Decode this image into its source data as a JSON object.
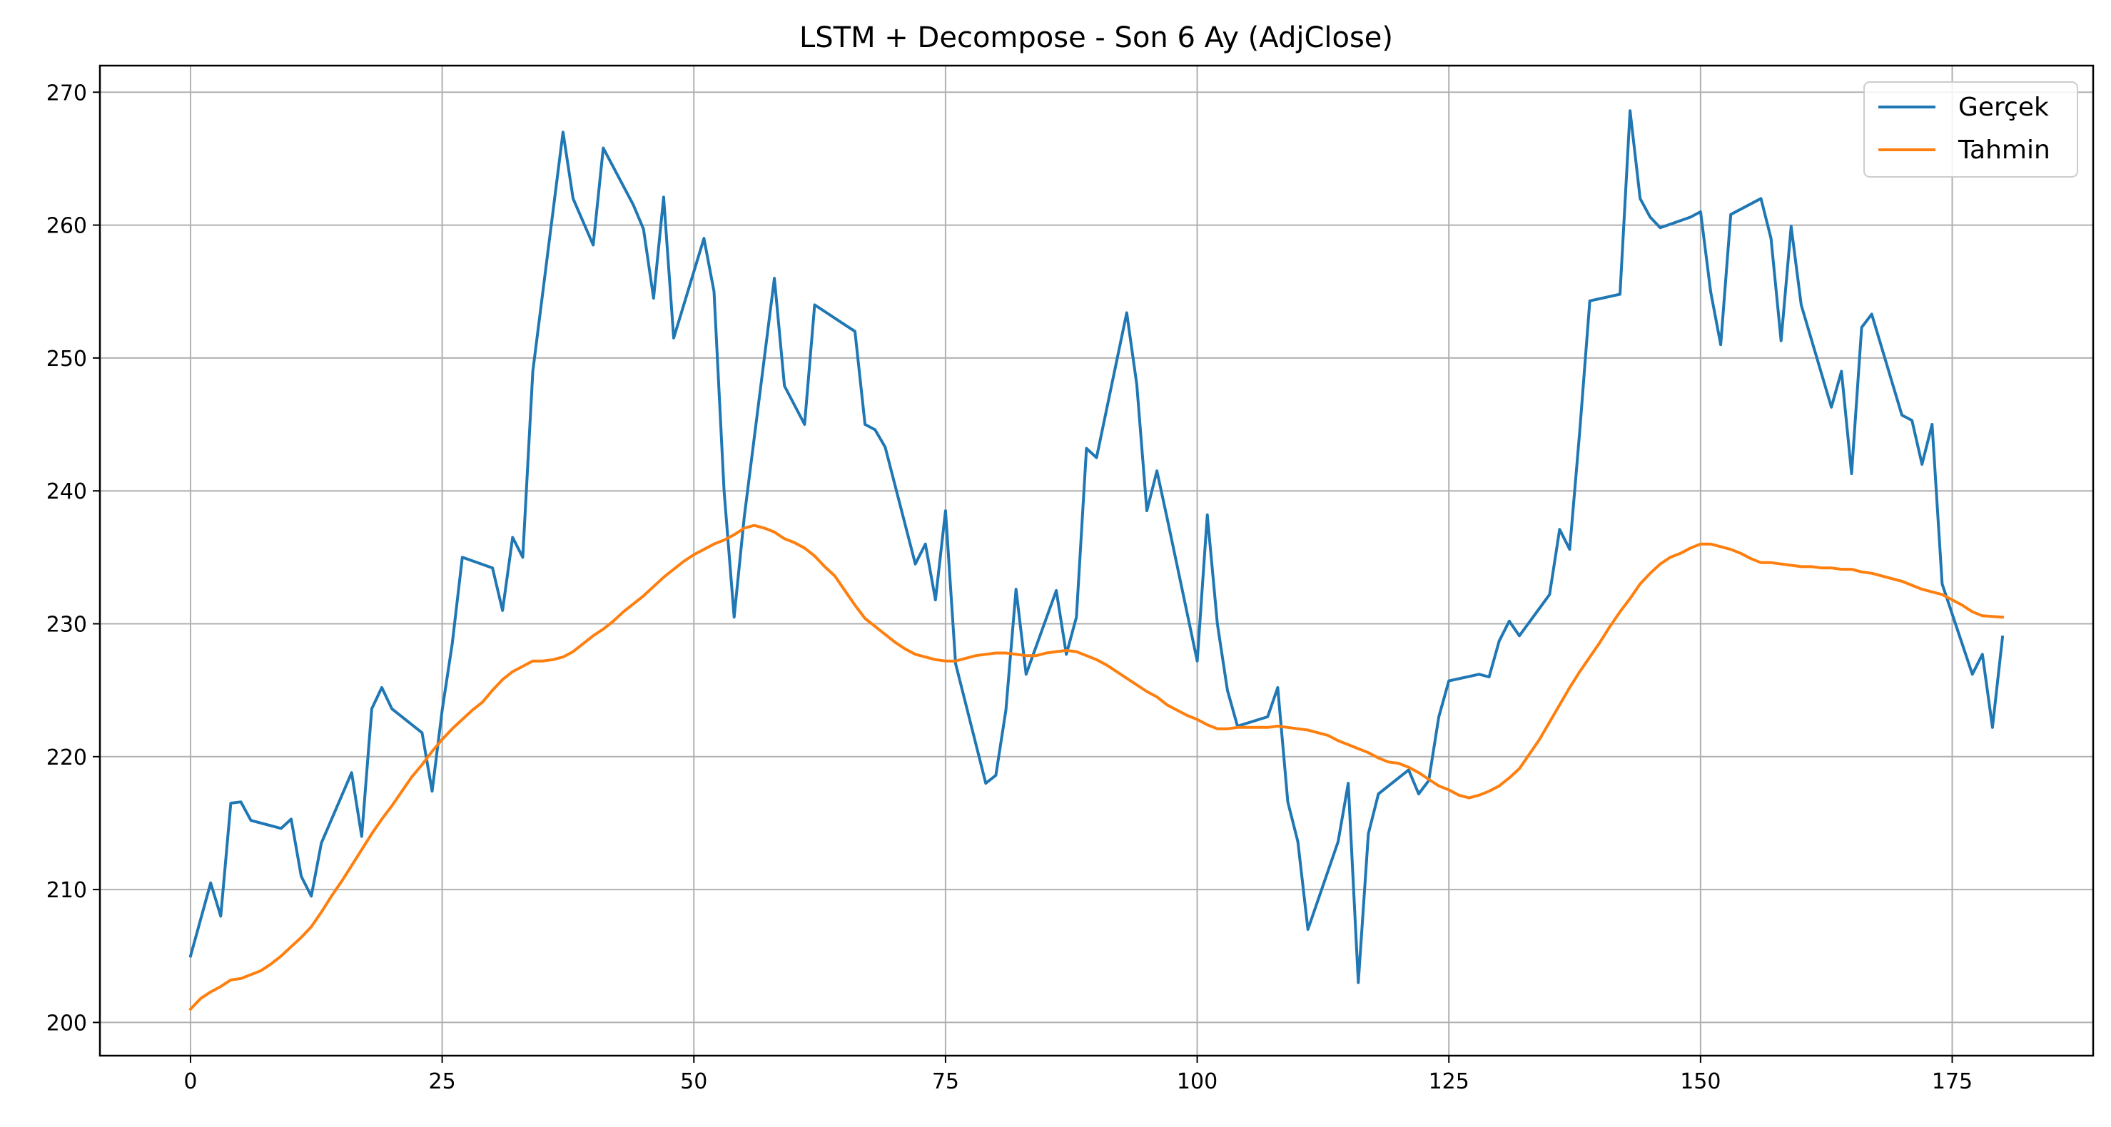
{
  "chart_data": {
    "type": "line",
    "title": "LSTM + Decompose - Son 6 Ay (AdjClose)",
    "xlabel": "",
    "ylabel": "",
    "xlim": [
      -9,
      189
    ],
    "ylim": [
      197.5,
      272
    ],
    "xticks": [
      0,
      25,
      50,
      75,
      100,
      125,
      150,
      175
    ],
    "yticks": [
      200,
      210,
      220,
      230,
      240,
      250,
      260,
      270
    ],
    "xtick_labels": [
      "0",
      "25",
      "50",
      "75",
      "100",
      "125",
      "150",
      "175"
    ],
    "ytick_labels": [
      "200",
      "210",
      "220",
      "230",
      "240",
      "250",
      "260",
      "270"
    ],
    "grid": true,
    "legend_position": "top-right",
    "series": [
      {
        "name": "Gerçek",
        "color": "#1f77b4",
        "points": [
          [
            0,
            205
          ],
          [
            2,
            210.5
          ],
          [
            3,
            208
          ],
          [
            4,
            216.5
          ],
          [
            5,
            216.6
          ],
          [
            6,
            215.2
          ],
          [
            9,
            214.6
          ],
          [
            10,
            215.3
          ],
          [
            11,
            211
          ],
          [
            12,
            209.5
          ],
          [
            13,
            213.5
          ],
          [
            16,
            218.8
          ],
          [
            17,
            214
          ],
          [
            18,
            223.6
          ],
          [
            19,
            225.2
          ],
          [
            20,
            223.6
          ],
          [
            23,
            221.8
          ],
          [
            24,
            217.4
          ],
          [
            25,
            223.5
          ],
          [
            26,
            228.5
          ],
          [
            27,
            235
          ],
          [
            30,
            234.2
          ],
          [
            31,
            231
          ],
          [
            32,
            236.5
          ],
          [
            33,
            235
          ],
          [
            34,
            249
          ],
          [
            37,
            267
          ],
          [
            38,
            262
          ],
          [
            40,
            258.5
          ],
          [
            41,
            265.8
          ],
          [
            44,
            261.5
          ],
          [
            45,
            259.7
          ],
          [
            46,
            254.5
          ],
          [
            47,
            262.1
          ],
          [
            48,
            251.5
          ],
          [
            51,
            259
          ],
          [
            52,
            255
          ],
          [
            53,
            240
          ],
          [
            54,
            230.5
          ],
          [
            55,
            238
          ],
          [
            58,
            256
          ],
          [
            59,
            247.9
          ],
          [
            61,
            245
          ],
          [
            62,
            254
          ],
          [
            65,
            252.5
          ],
          [
            66,
            252
          ],
          [
            67,
            245
          ],
          [
            68,
            244.6
          ],
          [
            69,
            243.3
          ],
          [
            72,
            234.5
          ],
          [
            73,
            236
          ],
          [
            74,
            231.8
          ],
          [
            75,
            238.5
          ],
          [
            76,
            227
          ],
          [
            79,
            218
          ],
          [
            80,
            218.6
          ],
          [
            81,
            223.5
          ],
          [
            82,
            232.6
          ],
          [
            83,
            226.2
          ],
          [
            86,
            232.5
          ],
          [
            87,
            227.7
          ],
          [
            88,
            230.5
          ],
          [
            89,
            243.2
          ],
          [
            90,
            242.5
          ],
          [
            93,
            253.4
          ],
          [
            94,
            248
          ],
          [
            95,
            238.5
          ],
          [
            96,
            241.5
          ],
          [
            97,
            238
          ],
          [
            100,
            227.2
          ],
          [
            101,
            238.2
          ],
          [
            102,
            230
          ],
          [
            103,
            225
          ],
          [
            104,
            222.3
          ],
          [
            107,
            223
          ],
          [
            108,
            225.2
          ],
          [
            109,
            216.6
          ],
          [
            110,
            213.6
          ],
          [
            111,
            207
          ],
          [
            114,
            213.6
          ],
          [
            115,
            218
          ],
          [
            116,
            203
          ],
          [
            117,
            214.2
          ],
          [
            118,
            217.2
          ],
          [
            121,
            219
          ],
          [
            122,
            217.2
          ],
          [
            123,
            218.2
          ],
          [
            124,
            223
          ],
          [
            125,
            225.7
          ],
          [
            128,
            226.2
          ],
          [
            129,
            226
          ],
          [
            130,
            228.7
          ],
          [
            131,
            230.2
          ],
          [
            132,
            229.1
          ],
          [
            135,
            232.2
          ],
          [
            136,
            237.1
          ],
          [
            137,
            235.6
          ],
          [
            138,
            244.5
          ],
          [
            139,
            254.3
          ],
          [
            142,
            254.8
          ],
          [
            143,
            268.6
          ],
          [
            144,
            262
          ],
          [
            145,
            260.6
          ],
          [
            146,
            259.8
          ],
          [
            149,
            260.6
          ],
          [
            150,
            261
          ],
          [
            151,
            255
          ],
          [
            152,
            251
          ],
          [
            153,
            260.8
          ],
          [
            156,
            262
          ],
          [
            157,
            259
          ],
          [
            158,
            251.3
          ],
          [
            159,
            259.9
          ],
          [
            160,
            254
          ],
          [
            163,
            246.3
          ],
          [
            164,
            249
          ],
          [
            165,
            241.3
          ],
          [
            166,
            252.3
          ],
          [
            167,
            253.3
          ],
          [
            170,
            245.7
          ],
          [
            171,
            245.3
          ],
          [
            172,
            242
          ],
          [
            173,
            245
          ],
          [
            174,
            233
          ],
          [
            177,
            226.2
          ],
          [
            178,
            227.7
          ],
          [
            179,
            222.2
          ],
          [
            180,
            229
          ]
        ]
      },
      {
        "name": "Tahmin",
        "color": "#ff7f0e",
        "points": [
          [
            0,
            201
          ],
          [
            1,
            201.8
          ],
          [
            2,
            202.3
          ],
          [
            3,
            202.7
          ],
          [
            4,
            203.2
          ],
          [
            5,
            203.3
          ],
          [
            6,
            203.6
          ],
          [
            7,
            203.9
          ],
          [
            8,
            204.4
          ],
          [
            9,
            205
          ],
          [
            10,
            205.7
          ],
          [
            11,
            206.4
          ],
          [
            12,
            207.2
          ],
          [
            13,
            208.3
          ],
          [
            14,
            209.5
          ],
          [
            15,
            210.6
          ],
          [
            16,
            211.8
          ],
          [
            17,
            213
          ],
          [
            18,
            214.2
          ],
          [
            19,
            215.3
          ],
          [
            20,
            216.3
          ],
          [
            21,
            217.4
          ],
          [
            22,
            218.5
          ],
          [
            23,
            219.4
          ],
          [
            24,
            220.4
          ],
          [
            25,
            221.3
          ],
          [
            26,
            222.1
          ],
          [
            27,
            222.8
          ],
          [
            28,
            223.5
          ],
          [
            29,
            224.1
          ],
          [
            30,
            225
          ],
          [
            31,
            225.8
          ],
          [
            32,
            226.4
          ],
          [
            33,
            226.8
          ],
          [
            34,
            227.2
          ],
          [
            35,
            227.2
          ],
          [
            36,
            227.3
          ],
          [
            37,
            227.5
          ],
          [
            38,
            227.9
          ],
          [
            39,
            228.5
          ],
          [
            40,
            229.1
          ],
          [
            41,
            229.6
          ],
          [
            42,
            230.2
          ],
          [
            43,
            230.9
          ],
          [
            44,
            231.5
          ],
          [
            45,
            232.1
          ],
          [
            46,
            232.8
          ],
          [
            47,
            233.5
          ],
          [
            48,
            234.1
          ],
          [
            49,
            234.7
          ],
          [
            50,
            235.2
          ],
          [
            51,
            235.6
          ],
          [
            52,
            236
          ],
          [
            53,
            236.3
          ],
          [
            54,
            236.7
          ],
          [
            55,
            237.2
          ],
          [
            56,
            237.4
          ],
          [
            57,
            237.2
          ],
          [
            58,
            236.9
          ],
          [
            59,
            236.4
          ],
          [
            60,
            236.1
          ],
          [
            61,
            235.7
          ],
          [
            62,
            235.1
          ],
          [
            63,
            234.3
          ],
          [
            64,
            233.6
          ],
          [
            65,
            232.5
          ],
          [
            66,
            231.4
          ],
          [
            67,
            230.4
          ],
          [
            68,
            229.8
          ],
          [
            69,
            229.2
          ],
          [
            70,
            228.6
          ],
          [
            71,
            228.1
          ],
          [
            72,
            227.7
          ],
          [
            73,
            227.5
          ],
          [
            74,
            227.3
          ],
          [
            75,
            227.2
          ],
          [
            76,
            227.2
          ],
          [
            77,
            227.4
          ],
          [
            78,
            227.6
          ],
          [
            79,
            227.7
          ],
          [
            80,
            227.8
          ],
          [
            81,
            227.8
          ],
          [
            82,
            227.7
          ],
          [
            83,
            227.6
          ],
          [
            84,
            227.6
          ],
          [
            85,
            227.8
          ],
          [
            86,
            227.9
          ],
          [
            87,
            228
          ],
          [
            88,
            227.9
          ],
          [
            89,
            227.6
          ],
          [
            90,
            227.3
          ],
          [
            91,
            226.9
          ],
          [
            92,
            226.4
          ],
          [
            93,
            225.9
          ],
          [
            94,
            225.4
          ],
          [
            95,
            224.9
          ],
          [
            96,
            224.5
          ],
          [
            97,
            223.9
          ],
          [
            98,
            223.5
          ],
          [
            99,
            223.1
          ],
          [
            100,
            222.8
          ],
          [
            101,
            222.4
          ],
          [
            102,
            222.1
          ],
          [
            103,
            222.1
          ],
          [
            104,
            222.2
          ],
          [
            105,
            222.2
          ],
          [
            106,
            222.2
          ],
          [
            107,
            222.2
          ],
          [
            108,
            222.3
          ],
          [
            109,
            222.2
          ],
          [
            110,
            222.1
          ],
          [
            111,
            222
          ],
          [
            112,
            221.8
          ],
          [
            113,
            221.6
          ],
          [
            114,
            221.2
          ],
          [
            115,
            220.9
          ],
          [
            116,
            220.6
          ],
          [
            117,
            220.3
          ],
          [
            118,
            219.9
          ],
          [
            119,
            219.6
          ],
          [
            120,
            219.5
          ],
          [
            121,
            219.2
          ],
          [
            122,
            218.8
          ],
          [
            123,
            218.3
          ],
          [
            124,
            217.8
          ],
          [
            125,
            217.5
          ],
          [
            126,
            217.1
          ],
          [
            127,
            216.9
          ],
          [
            128,
            217.1
          ],
          [
            129,
            217.4
          ],
          [
            130,
            217.8
          ],
          [
            131,
            218.4
          ],
          [
            132,
            219.1
          ],
          [
            133,
            220.2
          ],
          [
            134,
            221.3
          ],
          [
            135,
            222.6
          ],
          [
            136,
            223.9
          ],
          [
            137,
            225.2
          ],
          [
            138,
            226.4
          ],
          [
            139,
            227.5
          ],
          [
            140,
            228.6
          ],
          [
            141,
            229.8
          ],
          [
            142,
            230.9
          ],
          [
            143,
            231.9
          ],
          [
            144,
            233
          ],
          [
            145,
            233.8
          ],
          [
            146,
            234.5
          ],
          [
            147,
            235
          ],
          [
            148,
            235.3
          ],
          [
            149,
            235.7
          ],
          [
            150,
            236
          ],
          [
            151,
            236
          ],
          [
            152,
            235.8
          ],
          [
            153,
            235.6
          ],
          [
            154,
            235.3
          ],
          [
            155,
            234.9
          ],
          [
            156,
            234.6
          ],
          [
            157,
            234.6
          ],
          [
            158,
            234.5
          ],
          [
            159,
            234.4
          ],
          [
            160,
            234.3
          ],
          [
            161,
            234.3
          ],
          [
            162,
            234.2
          ],
          [
            163,
            234.2
          ],
          [
            164,
            234.1
          ],
          [
            165,
            234.1
          ],
          [
            166,
            233.9
          ],
          [
            167,
            233.8
          ],
          [
            168,
            233.6
          ],
          [
            169,
            233.4
          ],
          [
            170,
            233.2
          ],
          [
            171,
            232.9
          ],
          [
            172,
            232.6
          ],
          [
            173,
            232.4
          ],
          [
            174,
            232.2
          ],
          [
            175,
            231.8
          ],
          [
            176,
            231.4
          ],
          [
            177,
            230.9
          ],
          [
            178,
            230.6
          ],
          [
            180,
            230.5
          ]
        ]
      }
    ]
  }
}
